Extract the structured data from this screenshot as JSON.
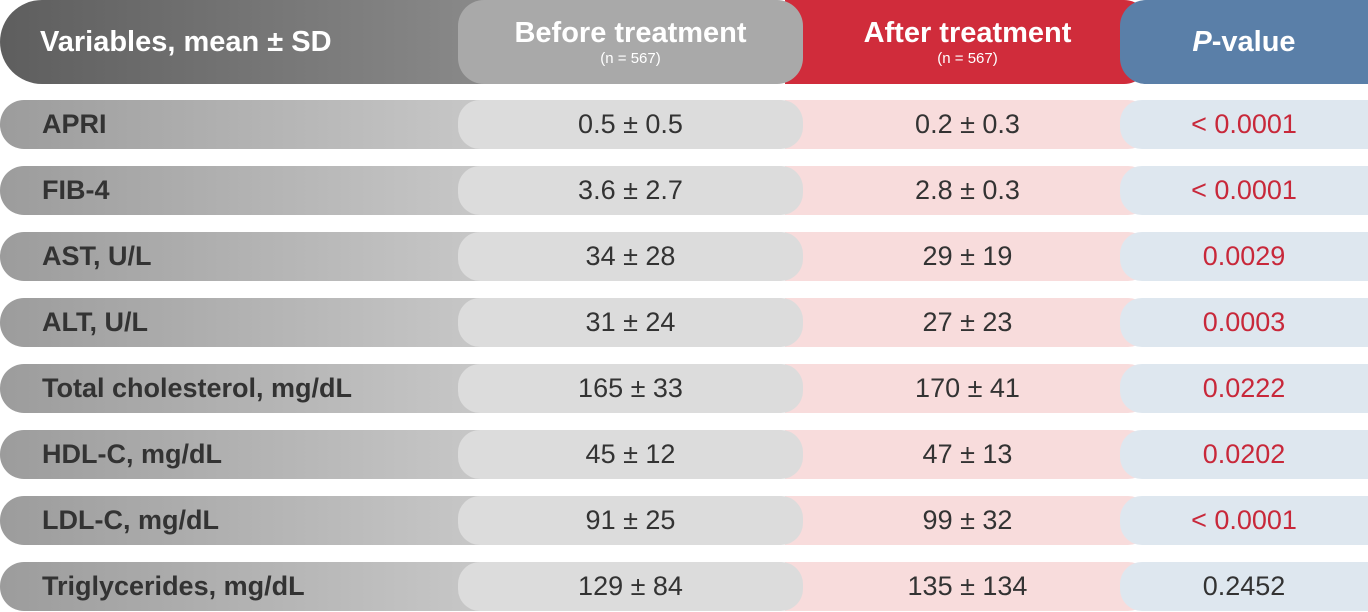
{
  "chart_data": {
    "type": "table",
    "columns": {
      "variables": "Variables, mean ± SD",
      "before_title": "Before treatment",
      "before_n": "(n = 567)",
      "after_title": "After treatment",
      "after_n": "(n = 567)",
      "p_prefix": "P",
      "p_suffix": "-value"
    },
    "rows": [
      {
        "variable": "APRI",
        "before": "0.5 ± 0.5",
        "after": "0.2 ± 0.3",
        "p": "< 0.0001",
        "significant": true
      },
      {
        "variable": "FIB-4",
        "before": "3.6 ± 2.7",
        "after": "2.8 ± 0.3",
        "p": "< 0.0001",
        "significant": true
      },
      {
        "variable": "AST, U/L",
        "before": "34 ± 28",
        "after": "29 ± 19",
        "p": "0.0029",
        "significant": true
      },
      {
        "variable": "ALT, U/L",
        "before": "31 ± 24",
        "after": "27 ± 23",
        "p": "0.0003",
        "significant": true
      },
      {
        "variable": "Total cholesterol, mg/dL",
        "before": "165 ± 33",
        "after": "170 ± 41",
        "p": "0.0222",
        "significant": true
      },
      {
        "variable": "HDL-C, mg/dL",
        "before": "45 ± 12",
        "after": "47 ± 13",
        "p": "0.0202",
        "significant": true
      },
      {
        "variable": "LDL-C, mg/dL",
        "before": "91 ± 25",
        "after": "99 ± 32",
        "p": "< 0.0001",
        "significant": true
      },
      {
        "variable": "Triglycerides, mg/dL",
        "before": "129 ± 84",
        "after": "135 ± 134",
        "p": "0.2452",
        "significant": false
      }
    ]
  },
  "colors": {
    "significant_p": "#c8283a",
    "nonsignificant_p": "#333333"
  }
}
